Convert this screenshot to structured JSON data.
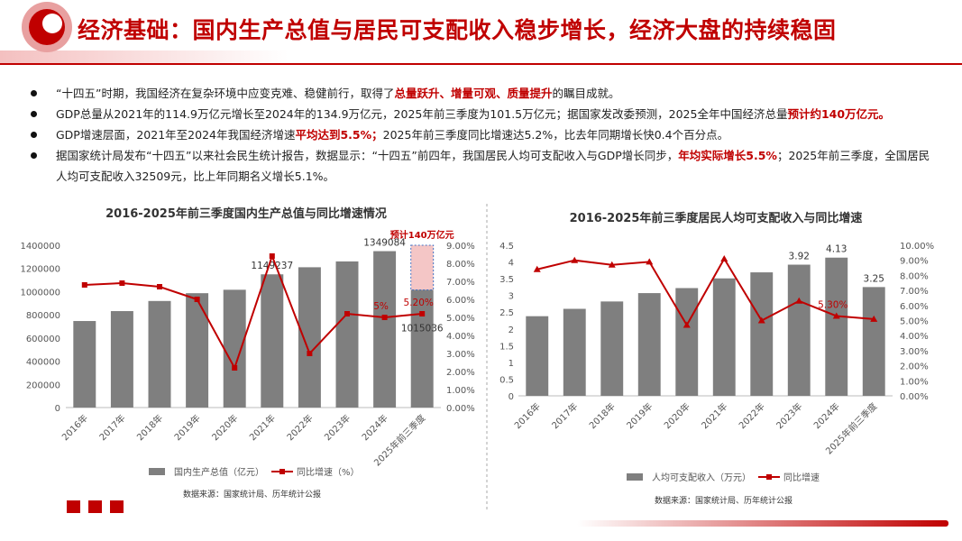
{
  "header": {
    "title": "经济基础：国内生产总值与居民可支配收入稳步增长，经济大盘的持续稳固"
  },
  "bullets": [
    {
      "runs": [
        {
          "text": "“十四五”时期，我国经济在复杂环境中应变克难、稳健前行，取得了",
          "highlight": false
        },
        {
          "text": "总量跃升、增量可观、质量提升",
          "highlight": true
        },
        {
          "text": "的瞩目成就。",
          "highlight": false
        }
      ]
    },
    {
      "runs": [
        {
          "text": "GDP总量从2021年的114.9万亿元增长至2024年的134.9万亿元，2025年前三季度为101.5万亿元；据国家发改委预测，2025全年中国经济总量",
          "highlight": false
        },
        {
          "text": "预计约140万亿元。",
          "highlight": true
        }
      ]
    },
    {
      "runs": [
        {
          "text": "GDP增速层面，2021年至2024年我国经济增速",
          "highlight": false
        },
        {
          "text": "平均达到5.5%；",
          "highlight": true
        },
        {
          "text": "2025年前三季度同比增速达5.2%，比去年同期增长快0.4个百分点。",
          "highlight": false
        }
      ]
    },
    {
      "runs": [
        {
          "text": "据国家统计局发布“十四五”以来社会民生统计报告，数据显示：“十四五”前四年，我国居民人均可支配收入与GDP增长同步，",
          "highlight": false
        },
        {
          "text": "年均实际增长5.5%",
          "highlight": true
        },
        {
          "text": "；2025年前三季度，全国居民人均可支配收入32509元，比上年同期名义增长5.1%。",
          "highlight": false
        }
      ]
    }
  ],
  "chart_data": [
    {
      "type": "combo",
      "title": "2016-2025年前三季度国内生产总值与同比增速情况",
      "categories": [
        "2016年",
        "2017年",
        "2018年",
        "2019年",
        "2020年",
        "2021年",
        "2022年",
        "2023年",
        "2024年",
        "2025年前三季度"
      ],
      "series": [
        {
          "name": "国内生产总值（亿元）",
          "type": "bar",
          "color": "#7f7f7f",
          "values": [
            746395,
            832036,
            919281,
            986515,
            1015986,
            1149237,
            1210207,
            1260582,
            1349084,
            1015036
          ],
          "value_labels": [
            null,
            null,
            null,
            null,
            null,
            "1149237",
            null,
            null,
            "1349084",
            "1015036"
          ]
        },
        {
          "name": "同比增速（%）",
          "type": "line",
          "axis": "y2",
          "marker": "square",
          "color": "#c00000",
          "values": [
            6.8,
            6.9,
            6.7,
            6.0,
            2.2,
            8.4,
            3.0,
            5.2,
            5.0,
            5.2
          ],
          "value_labels": [
            null,
            null,
            null,
            null,
            null,
            null,
            null,
            null,
            "5%",
            "5.20%"
          ]
        }
      ],
      "forecast": {
        "label": "预计140万亿元",
        "value": 1400000
      },
      "ylim": [
        0,
        1400000
      ],
      "yticks": [
        0,
        200000,
        400000,
        600000,
        800000,
        1000000,
        1200000,
        1400000
      ],
      "y2lim": [
        0,
        9
      ],
      "y2ticks": [
        {
          "value": 0,
          "label": "0.00%"
        },
        {
          "value": 1,
          "label": "1.00%"
        },
        {
          "value": 2,
          "label": "2.00%"
        },
        {
          "value": 3,
          "label": "3.00%"
        },
        {
          "value": 4,
          "label": "4.00%"
        },
        {
          "value": 5,
          "label": "5.00%"
        },
        {
          "value": 6,
          "label": "6.00%"
        },
        {
          "value": 7,
          "label": "7.00%"
        },
        {
          "value": 8,
          "label": "8.00%"
        },
        {
          "value": 9,
          "label": "9.00%"
        }
      ],
      "source": "数据来源：国家统计局、历年统计公报"
    },
    {
      "type": "combo",
      "title": "2016-2025年前三季度居民人均可支配收入与同比增速",
      "categories": [
        "2016年",
        "2017年",
        "2018年",
        "2019年",
        "2020年",
        "2021年",
        "2022年",
        "2023年",
        "2024年",
        "2025年前三季度"
      ],
      "series": [
        {
          "name": "人均可支配收入（万元）",
          "type": "bar",
          "color": "#7f7f7f",
          "values": [
            2.38,
            2.6,
            2.82,
            3.07,
            3.22,
            3.51,
            3.69,
            3.92,
            4.13,
            3.25
          ],
          "value_labels": [
            null,
            null,
            null,
            null,
            null,
            null,
            null,
            "3.92",
            "4.13",
            "3.25"
          ]
        },
        {
          "name": "同比增速",
          "type": "line",
          "axis": "y2",
          "marker": "triangle",
          "color": "#c00000",
          "values": [
            8.4,
            9.0,
            8.7,
            8.9,
            4.7,
            9.1,
            5.0,
            6.3,
            5.3,
            5.1
          ],
          "value_labels": [
            null,
            null,
            null,
            null,
            null,
            null,
            null,
            null,
            "5.30%",
            null
          ]
        }
      ],
      "ylim": [
        0,
        4.5
      ],
      "yticks": [
        0,
        0.5,
        1,
        1.5,
        2,
        2.5,
        3,
        3.5,
        4,
        4.5
      ],
      "y2lim": [
        0,
        10
      ],
      "y2ticks": [
        {
          "value": 0,
          "label": "0.00%"
        },
        {
          "value": 1,
          "label": "1.00%"
        },
        {
          "value": 2,
          "label": "2.00%"
        },
        {
          "value": 3,
          "label": "3.00%"
        },
        {
          "value": 4,
          "label": "4.00%"
        },
        {
          "value": 5,
          "label": "5.00%"
        },
        {
          "value": 6,
          "label": "6.00%"
        },
        {
          "value": 7,
          "label": "7.00%"
        },
        {
          "value": 8,
          "label": "8.00%"
        },
        {
          "value": 9,
          "label": "9.00%"
        },
        {
          "value": 10,
          "label": "10.00%"
        }
      ],
      "source": "数据来源：国家统计局、历年统计公报"
    }
  ]
}
